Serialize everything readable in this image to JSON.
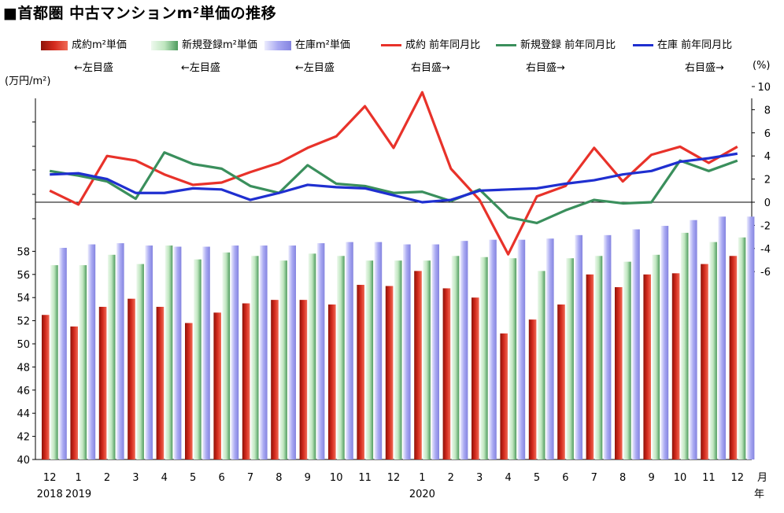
{
  "title": "■首都圏 中古マンションm²単価の推移",
  "units": {
    "left": "(万円/m²)",
    "right": "(%)",
    "x_month": "月",
    "x_year": "年"
  },
  "colors": {
    "bar_sold": "#d42b1e",
    "bar_new": "#bfe6bf",
    "bar_stock": "#a9a9f2",
    "line_sold": "#e8322a",
    "line_new": "#3a8f5c",
    "line_stock": "#1f2fd0"
  },
  "legend": [
    {
      "label": "成約m²単価",
      "sub": "←左目盛",
      "kind": "bar",
      "color_key": "bar_sold"
    },
    {
      "label": "新規登録m²単価",
      "sub": "←左目盛",
      "kind": "bar",
      "color_key": "bar_new"
    },
    {
      "label": "在庫m²単価",
      "sub": "←左目盛",
      "kind": "bar",
      "color_key": "bar_stock"
    },
    {
      "label": "成約 前年同月比",
      "sub": "右目盛→",
      "kind": "line",
      "color_key": "line_sold"
    },
    {
      "label": "新規登録 前年同月比",
      "sub": "右目盛→",
      "kind": "line",
      "color_key": "line_new"
    },
    {
      "label": "在庫 前年同月比",
      "sub": "右目盛→",
      "kind": "line",
      "color_key": "line_stock"
    }
  ],
  "chart_data": {
    "type": "bar",
    "categories": [
      "12",
      "1",
      "2",
      "3",
      "4",
      "5",
      "6",
      "7",
      "8",
      "9",
      "10",
      "11",
      "12",
      "1",
      "2",
      "3",
      "4",
      "5",
      "6",
      "7",
      "8",
      "9",
      "10",
      "11",
      "12"
    ],
    "year_labels": [
      {
        "index": 0,
        "label": "2018"
      },
      {
        "index": 1,
        "label": "2019"
      },
      {
        "index": 13,
        "label": "2020"
      }
    ],
    "left_axis": {
      "ylim": [
        40,
        60
      ],
      "ticks": [
        40,
        42,
        44,
        46,
        48,
        50,
        52,
        54,
        56,
        58
      ]
    },
    "right_axis": {
      "ylim": [
        -6,
        10
      ],
      "ticks": [
        10,
        8,
        6,
        4,
        2,
        0,
        -2,
        -4,
        -6
      ]
    },
    "bar_series": [
      {
        "name": "成約m²単価",
        "color_key": "bar_sold",
        "values": [
          52.5,
          51.5,
          53.2,
          53.9,
          53.2,
          51.8,
          52.7,
          53.5,
          53.8,
          53.8,
          53.4,
          55.1,
          55.0,
          56.3,
          54.8,
          54.0,
          50.9,
          52.1,
          53.4,
          56.0,
          54.9,
          56.0,
          56.1,
          56.9,
          57.6
        ]
      },
      {
        "name": "新規登録m²単価",
        "color_key": "bar_new",
        "values": [
          56.8,
          56.8,
          57.7,
          56.9,
          58.5,
          57.3,
          57.9,
          57.6,
          57.2,
          57.8,
          57.6,
          57.2,
          57.2,
          57.2,
          57.6,
          57.5,
          57.4,
          56.3,
          57.4,
          57.6,
          57.1,
          57.7,
          59.6,
          58.8,
          59.2
        ]
      },
      {
        "name": "在庫m²単価",
        "color_key": "bar_stock",
        "values": [
          58.3,
          58.6,
          58.7,
          58.5,
          58.4,
          58.4,
          58.5,
          58.5,
          58.5,
          58.7,
          58.8,
          58.8,
          58.6,
          58.6,
          58.9,
          59.0,
          59.0,
          59.1,
          59.4,
          59.4,
          59.9,
          60.2,
          60.7,
          61.0,
          61.0
        ]
      }
    ],
    "line_series": [
      {
        "name": "成約 前年同月比",
        "color_key": "line_sold",
        "values": [
          1.0,
          -0.2,
          4.0,
          3.6,
          2.4,
          1.5,
          1.7,
          2.6,
          3.4,
          4.7,
          5.7,
          8.3,
          4.7,
          9.5,
          2.9,
          0.2,
          -4.5,
          0.5,
          1.4,
          4.7,
          1.8,
          4.1,
          4.8,
          3.4,
          4.8
        ]
      },
      {
        "name": "新規登録 前年同月比",
        "color_key": "line_new",
        "values": [
          2.7,
          2.3,
          1.8,
          0.3,
          4.3,
          3.3,
          2.9,
          1.4,
          0.8,
          3.2,
          1.6,
          1.4,
          0.8,
          0.9,
          0.1,
          1.1,
          -1.3,
          -1.8,
          -0.7,
          0.2,
          -0.1,
          0.0,
          3.6,
          2.7,
          3.6
        ]
      },
      {
        "name": "在庫 前年同月比",
        "color_key": "line_stock",
        "values": [
          2.4,
          2.5,
          2.0,
          0.8,
          0.8,
          1.2,
          1.1,
          0.2,
          0.8,
          1.5,
          1.3,
          1.2,
          0.6,
          0.0,
          0.2,
          1.0,
          1.1,
          1.2,
          1.6,
          1.9,
          2.4,
          2.7,
          3.5,
          3.8,
          4.2
        ]
      }
    ]
  }
}
